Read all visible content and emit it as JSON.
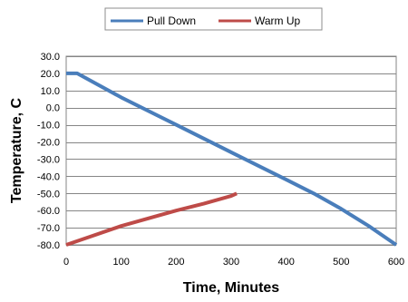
{
  "chart_data": {
    "type": "line",
    "xlabel": "Time, Minutes",
    "ylabel": "Temperature, C",
    "xlim": [
      0,
      600
    ],
    "ylim": [
      -80,
      30
    ],
    "x_ticks": [
      0,
      100,
      200,
      300,
      400,
      500,
      600
    ],
    "y_ticks": [
      30,
      20,
      10,
      0,
      -10,
      -20,
      -30,
      -40,
      -50,
      -60,
      -70,
      -80
    ],
    "x_tick_labels": [
      "0",
      "100",
      "200",
      "300",
      "400",
      "500",
      "600"
    ],
    "y_tick_labels": [
      "30.0",
      "20.0",
      "10.0",
      "0.0",
      "-10.0",
      "-20.0",
      "-30.0",
      "-40.0",
      "-50.0",
      "-60.0",
      "-70.0",
      "-80.0"
    ],
    "grid": "horizontal",
    "legend_position": "top",
    "series": [
      {
        "name": "Pull Down",
        "color": "#4A7EBB",
        "x": [
          0,
          20,
          100,
          200,
          300,
          400,
          450,
          500,
          550,
          600
        ],
        "y": [
          20,
          20,
          6,
          -10,
          -26,
          -42,
          -50,
          -59,
          -69,
          -80
        ]
      },
      {
        "name": "Warm Up",
        "color": "#BE4B48",
        "x": [
          0,
          50,
          100,
          150,
          200,
          250,
          300,
          310
        ],
        "y": [
          -80,
          -74.5,
          -69,
          -64.5,
          -60,
          -56,
          -51.5,
          -50
        ]
      }
    ]
  }
}
